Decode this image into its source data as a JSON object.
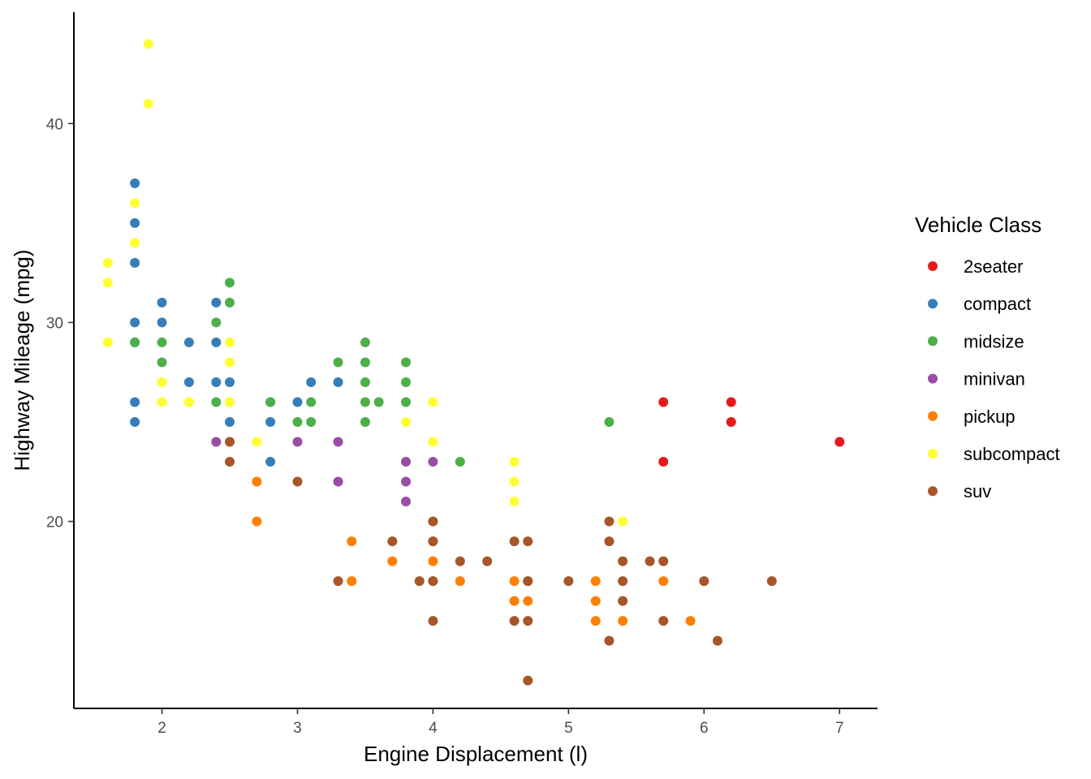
{
  "chart_data": {
    "type": "scatter",
    "title": "",
    "xlabel": "Engine Displacement (l)",
    "ylabel": "Highway Mileage (mpg)",
    "xlim": [
      1.35,
      7.28
    ],
    "ylim": [
      10.6,
      45.6
    ],
    "x_ticks": [
      2,
      3,
      4,
      5,
      6,
      7
    ],
    "y_ticks": [
      20,
      30,
      40
    ],
    "grid": false,
    "legend": {
      "title": "Vehicle Class",
      "position": "right"
    },
    "series": [
      {
        "name": "2seater",
        "color": "#E41A1C",
        "x": [
          5.7,
          5.7,
          6.2,
          6.2,
          7.0
        ],
        "y": [
          26,
          23,
          26,
          25,
          24
        ]
      },
      {
        "name": "compact",
        "color": "#377EB8",
        "x": [
          1.8,
          1.8,
          1.8,
          1.8,
          1.8,
          1.8,
          1.8,
          2.0,
          2.0,
          2.2,
          2.2,
          2.4,
          2.4,
          2.4,
          2.5,
          2.5,
          2.5,
          2.8,
          2.8,
          2.8,
          3.0,
          3.1,
          3.3
        ],
        "y": [
          37,
          35,
          33,
          30,
          29,
          26,
          25,
          31,
          30,
          29,
          27,
          31,
          29,
          27,
          27,
          26,
          25,
          26,
          25,
          23,
          26,
          27,
          27
        ]
      },
      {
        "name": "midsize",
        "color": "#4DAF4A",
        "x": [
          1.8,
          2.0,
          2.0,
          2.4,
          2.4,
          2.5,
          2.5,
          2.8,
          3.0,
          3.1,
          3.1,
          3.3,
          3.5,
          3.5,
          3.5,
          3.5,
          3.5,
          3.6,
          3.8,
          3.8,
          3.8,
          4.2,
          5.3
        ],
        "y": [
          29,
          29,
          28,
          30,
          26,
          32,
          31,
          26,
          25,
          26,
          25,
          28,
          29,
          28,
          27,
          26,
          25,
          26,
          28,
          27,
          26,
          23,
          25
        ]
      },
      {
        "name": "minivan",
        "color": "#984EA3",
        "x": [
          2.4,
          3.0,
          3.3,
          3.3,
          3.8,
          3.8,
          3.8,
          4.0
        ],
        "y": [
          24,
          24,
          24,
          22,
          23,
          22,
          21,
          23
        ]
      },
      {
        "name": "pickup",
        "color": "#FF7F00",
        "x": [
          2.7,
          2.7,
          3.4,
          3.4,
          3.7,
          4.0,
          4.0,
          4.0,
          4.0,
          4.2,
          4.6,
          4.6,
          4.7,
          4.7,
          5.2,
          5.2,
          5.2,
          5.4,
          5.7,
          5.9
        ],
        "y": [
          22,
          20,
          19,
          17,
          18,
          20,
          19,
          18,
          17,
          17,
          17,
          16,
          17,
          16,
          17,
          16,
          15,
          15,
          17,
          15
        ]
      },
      {
        "name": "subcompact",
        "color": "#FFFF33",
        "x": [
          1.6,
          1.6,
          1.6,
          1.8,
          1.8,
          1.9,
          1.9,
          2.0,
          2.0,
          2.2,
          2.5,
          2.5,
          2.5,
          2.7,
          3.8,
          4.0,
          4.0,
          4.6,
          4.6,
          4.6,
          5.4
        ],
        "y": [
          33,
          32,
          29,
          36,
          34,
          44,
          41,
          27,
          26,
          26,
          29,
          28,
          26,
          24,
          25,
          26,
          24,
          23,
          22,
          21,
          20
        ]
      },
      {
        "name": "suv",
        "color": "#A65628",
        "x": [
          2.5,
          2.5,
          3.0,
          3.3,
          3.7,
          3.9,
          4.0,
          4.0,
          4.0,
          4.0,
          4.2,
          4.4,
          4.6,
          4.6,
          4.7,
          4.7,
          4.7,
          4.7,
          5.0,
          5.3,
          5.3,
          5.3,
          5.4,
          5.4,
          5.4,
          5.6,
          5.7,
          5.7,
          6.0,
          6.1,
          6.5
        ],
        "y": [
          24,
          23,
          22,
          17,
          19,
          17,
          20,
          19,
          17,
          15,
          18,
          18,
          19,
          15,
          19,
          17,
          15,
          12,
          17,
          20,
          19,
          14,
          18,
          17,
          16,
          18,
          18,
          15,
          17,
          14,
          17
        ]
      }
    ]
  }
}
